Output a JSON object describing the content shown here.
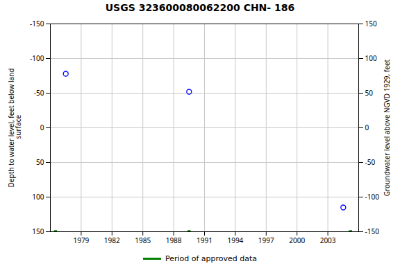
{
  "chart_data": {
    "type": "scatter",
    "title": "USGS 323600080062200 CHN- 186",
    "ylabel": "Depth to water level, feet below land\n surface",
    "y2label": "Groundwater level above NGVD 1929, feet",
    "xlim": [
      1976,
      2006
    ],
    "xticks": [
      1979,
      1982,
      1985,
      1988,
      1991,
      1994,
      1997,
      2000,
      2003
    ],
    "ylim": [
      150,
      -150
    ],
    "yticks": [
      -150,
      -100,
      -50,
      0,
      50,
      100,
      150
    ],
    "y2lim": [
      -150,
      150
    ],
    "y2ticks": [
      150,
      100,
      50,
      0,
      -50,
      -100,
      -150
    ],
    "grid": true,
    "legend": "bottom",
    "series": [
      {
        "color": "blue",
        "marker": "circle",
        "x": [
          1977.5,
          1989.5,
          2004.5
        ],
        "values": [
          -78,
          -52,
          115
        ]
      },
      {
        "name": "Period of approved data",
        "color": "green",
        "marker": "square",
        "x": [
          1976.5,
          1989.5,
          2005.2
        ],
        "values": [
          150,
          150,
          150
        ]
      }
    ]
  }
}
